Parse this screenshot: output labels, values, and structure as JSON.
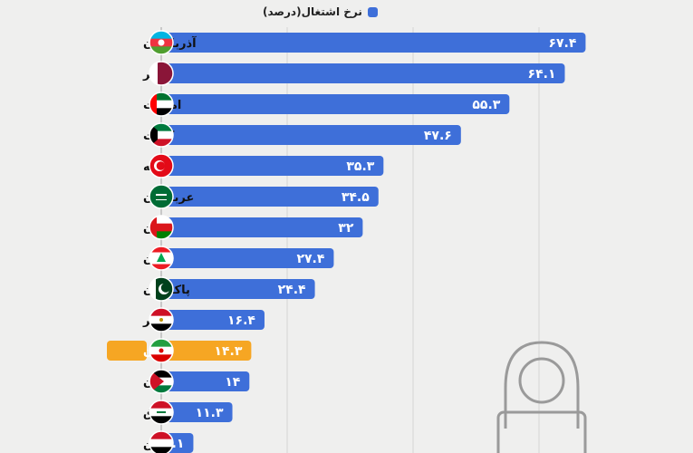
{
  "chart_data": {
    "type": "bar",
    "orientation": "horizontal",
    "legend": {
      "label": "نرخ اشتغال(درصد)",
      "placement": "top"
    },
    "categories": [
      "آذربایجان",
      "قطر",
      "امارات",
      "کویت",
      "ترکیه",
      "عربستان",
      "عمان",
      "لبنان",
      "پاکستان",
      "مصر",
      "ایران",
      "اردن",
      "عراق",
      "یمن"
    ],
    "values": [
      67.4,
      64.1,
      55.3,
      47.6,
      35.3,
      34.5,
      32,
      27.4,
      24.4,
      16.4,
      14.3,
      14,
      11.3,
      5.1
    ],
    "value_labels": [
      "۶۷.۴",
      "۶۴.۱",
      "۵۵.۳",
      "۴۷.۶",
      "۳۵.۳",
      "۳۴.۵",
      "۳۲",
      "۲۷.۴",
      "۲۴.۴",
      "۱۶.۴",
      "۱۴.۳",
      "۱۴",
      "۱۱.۳",
      "۵.۱"
    ],
    "highlight": "ایران",
    "xlim": [
      0,
      70
    ],
    "grid": true,
    "colors": {
      "bar": "#3e6fd9",
      "highlight": "#f6a623",
      "background": "#efefee"
    }
  },
  "flags": [
    "azerbaijan",
    "qatar",
    "uae",
    "kuwait",
    "turkey",
    "saudi-arabia",
    "oman",
    "lebanon",
    "pakistan",
    "egypt",
    "iran",
    "jordan",
    "iraq",
    "yemen"
  ]
}
